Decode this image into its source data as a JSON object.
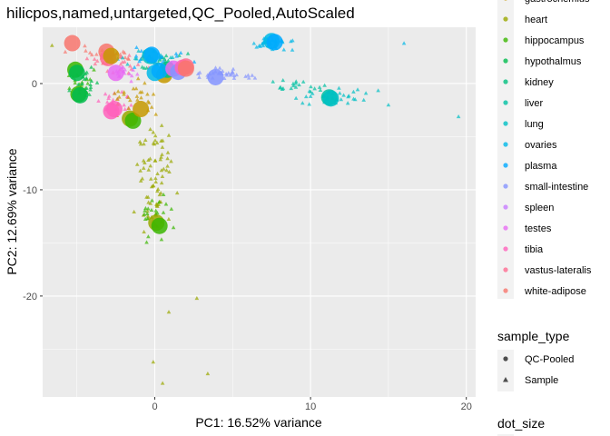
{
  "chart_data": {
    "type": "scatter",
    "title": "hilicpos,named,untargeted,QC_Pooled,AutoScaled",
    "xlabel": "PC1: 16.52% variance",
    "ylabel": "PC2: 12.69% variance",
    "xlim": [
      -7.2,
      20.6
    ],
    "ylim": [
      -29.5,
      5.3
    ],
    "x_ticks": [
      0,
      10,
      20
    ],
    "y_ticks": [
      0,
      -10,
      -20
    ],
    "grid": true,
    "legend_position": "right",
    "tissue_legend": {
      "items": [
        {
          "name": "gastrocnemius",
          "color": "#C59900"
        },
        {
          "name": "heart",
          "color": "#9AA800"
        },
        {
          "name": "hippocampus",
          "color": "#39B600"
        },
        {
          "name": "hypothalmus",
          "color": "#00BB4E"
        },
        {
          "name": "kidney",
          "color": "#00BF7D"
        },
        {
          "name": "liver",
          "color": "#00C1A3"
        },
        {
          "name": "lung",
          "color": "#00BFC4"
        },
        {
          "name": "ovaries",
          "color": "#00B8E7"
        },
        {
          "name": "plasma",
          "color": "#00A9FF"
        },
        {
          "name": "small-intestine",
          "color": "#8494FF"
        },
        {
          "name": "spleen",
          "color": "#C77CFF"
        },
        {
          "name": "testes",
          "color": "#E76BF3"
        },
        {
          "name": "tibia",
          "color": "#FF62BC"
        },
        {
          "name": "vastus-lateralis",
          "color": "#FF6C91"
        },
        {
          "name": "white-adipose",
          "color": "#F8766D"
        }
      ]
    },
    "sample_type_legend": {
      "title": "sample_type",
      "items": [
        {
          "name": "QC-Pooled",
          "shape": "circle"
        },
        {
          "name": "Sample",
          "shape": "triangle"
        }
      ]
    },
    "dot_size_legend": {
      "title": "dot_size"
    },
    "qc_pooled_points": [
      {
        "tissue": "white-adipose",
        "x": -5.3,
        "y": 3.8
      },
      {
        "tissue": "white-adipose",
        "x": -3.1,
        "y": 3.0
      },
      {
        "tissue": "vastus-lateralis",
        "x": -3.0,
        "y": 2.4
      },
      {
        "tissue": "gastrocnemius",
        "x": -2.8,
        "y": 2.6
      },
      {
        "tissue": "tibia",
        "x": -2.8,
        "y": -2.6
      },
      {
        "tissue": "tibia",
        "x": -2.6,
        "y": -2.4
      },
      {
        "tissue": "hippocampus",
        "x": -5.1,
        "y": 1.3
      },
      {
        "tissue": "hypothalmus",
        "x": -5.0,
        "y": 1.0
      },
      {
        "tissue": "hippocampus",
        "x": -4.9,
        "y": -1.0
      },
      {
        "tissue": "hypothalmus",
        "x": -4.8,
        "y": -1.1
      },
      {
        "tissue": "testes",
        "x": -2.5,
        "y": 1.0
      },
      {
        "tissue": "heart",
        "x": -1.6,
        "y": -3.3
      },
      {
        "tissue": "hippocampus",
        "x": -1.4,
        "y": -3.5
      },
      {
        "tissue": "gastrocnemius",
        "x": -0.9,
        "y": -2.4
      },
      {
        "tissue": "lung",
        "x": -0.3,
        "y": 2.6
      },
      {
        "tissue": "plasma",
        "x": -0.2,
        "y": 2.7
      },
      {
        "tissue": "gastrocnemius",
        "x": 0.6,
        "y": 0.8
      },
      {
        "tissue": "kidney",
        "x": 0.8,
        "y": 1.3
      },
      {
        "tissue": "ovaries",
        "x": 0.0,
        "y": 1.0
      },
      {
        "tissue": "plasma",
        "x": 0.3,
        "y": 1.2
      },
      {
        "tissue": "testes",
        "x": 1.2,
        "y": 1.4
      },
      {
        "tissue": "small-intestine",
        "x": 1.5,
        "y": 1.1
      },
      {
        "tissue": "tibia",
        "x": 1.8,
        "y": 1.5
      },
      {
        "tissue": "vastus-lateralis",
        "x": 2.0,
        "y": 1.6
      },
      {
        "tissue": "white-adipose",
        "x": 2.0,
        "y": 1.4
      },
      {
        "tissue": "small-intestine",
        "x": 3.9,
        "y": 0.6
      },
      {
        "tissue": "ovaries",
        "x": 7.5,
        "y": 4.0
      },
      {
        "tissue": "plasma",
        "x": 7.7,
        "y": 3.9
      },
      {
        "tissue": "liver",
        "x": 11.2,
        "y": -1.3
      },
      {
        "tissue": "lung",
        "x": 11.3,
        "y": -1.4
      },
      {
        "tissue": "heart",
        "x": 0.1,
        "y": -13.1
      },
      {
        "tissue": "hippocampus",
        "x": 0.3,
        "y": -13.4
      }
    ],
    "sample_clusters": [
      {
        "tissue": "white-adipose",
        "n": 26,
        "cx": -3.0,
        "cy": 2.6,
        "sx": 2.0,
        "sy": 0.8
      },
      {
        "tissue": "vastus-lateralis",
        "n": 24,
        "cx": -2.5,
        "cy": 2.0,
        "sx": 2.0,
        "sy": 0.9
      },
      {
        "tissue": "tibia",
        "n": 20,
        "cx": -2.4,
        "cy": -1.8,
        "sx": 1.2,
        "sy": 0.9
      },
      {
        "tissue": "testes",
        "n": 16,
        "cx": -2.2,
        "cy": 1.0,
        "sx": 1.0,
        "sy": 0.6
      },
      {
        "tissue": "hippocampus",
        "n": 18,
        "cx": -4.6,
        "cy": 0.2,
        "sx": 0.8,
        "sy": 1.2
      },
      {
        "tissue": "hypothalmus",
        "n": 18,
        "cx": -4.4,
        "cy": 0.0,
        "sx": 0.8,
        "sy": 1.2
      },
      {
        "tissue": "gastrocnemius",
        "n": 28,
        "cx": -1.4,
        "cy": -1.2,
        "sx": 1.8,
        "sy": 1.5
      },
      {
        "tissue": "kidney",
        "n": 24,
        "cx": 1.0,
        "cy": 1.8,
        "sx": 2.0,
        "sy": 0.8
      },
      {
        "tissue": "lung",
        "n": 16,
        "cx": -0.5,
        "cy": 2.5,
        "sx": 1.5,
        "sy": 0.8
      },
      {
        "tissue": "plasma",
        "n": 24,
        "cx": 0.5,
        "cy": 2.2,
        "sx": 2.2,
        "sy": 0.9
      },
      {
        "tissue": "small-intestine",
        "n": 32,
        "cx": 4.5,
        "cy": 0.9,
        "sx": 2.2,
        "sy": 0.5
      },
      {
        "tissue": "ovaries",
        "n": 38,
        "cx": 7.5,
        "cy": 3.8,
        "sx": 1.2,
        "sy": 0.6
      },
      {
        "tissue": "lung",
        "n": 32,
        "cx": 11.0,
        "cy": -1.3,
        "sx": 2.6,
        "sy": 0.8
      },
      {
        "tissue": "liver",
        "n": 20,
        "cx": 9.0,
        "cy": -0.3,
        "sx": 2.0,
        "sy": 0.6
      },
      {
        "tissue": "heart",
        "n": 78,
        "cx": 0.0,
        "cy": -9.0,
        "sx": 1.1,
        "sy": 5.0
      },
      {
        "tissue": "hippocampus",
        "n": 24,
        "cx": 0.0,
        "cy": -12.5,
        "sx": 1.0,
        "sy": 2.0
      }
    ],
    "sample_outliers": [
      {
        "tissue": "ovaries",
        "x": 16.0,
        "y": 3.8
      },
      {
        "tissue": "lung",
        "x": 19.5,
        "y": -3.1
      },
      {
        "tissue": "lung",
        "x": 15.0,
        "y": -2.0
      },
      {
        "tissue": "heart",
        "x": 3.4,
        "y": -27.3
      },
      {
        "tissue": "heart",
        "x": 0.5,
        "y": -28.2
      },
      {
        "tissue": "heart",
        "x": -0.1,
        "y": -26.2
      },
      {
        "tissue": "heart",
        "x": 0.9,
        "y": -21.5
      },
      {
        "tissue": "heart",
        "x": 2.7,
        "y": -20.2
      },
      {
        "tissue": "heart",
        "x": -6.6,
        "y": 3.6
      }
    ]
  }
}
